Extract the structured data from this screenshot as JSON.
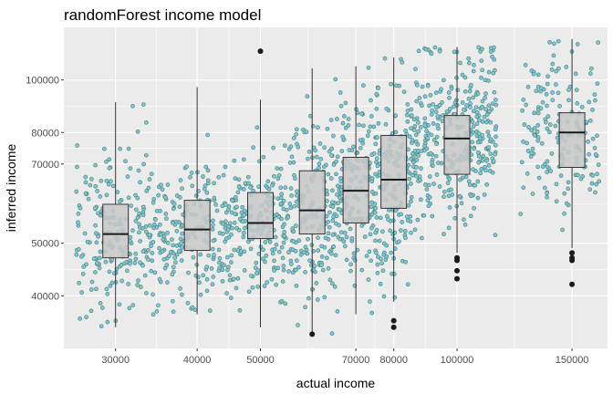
{
  "chart_data": {
    "type": "box-jitter",
    "title": "randomForest income model",
    "xlabel": "actual income",
    "ylabel": "inferred income",
    "x_scale": "log10",
    "y_scale": "log10",
    "xlim": [
      25000,
      170000
    ],
    "ylim": [
      32000,
      125000
    ],
    "x_ticks": [
      30000,
      40000,
      50000,
      70000,
      80000,
      100000,
      150000
    ],
    "x_tick_labels": [
      "30000",
      "40000",
      "50000",
      "70000",
      "80000",
      "100000",
      "150000"
    ],
    "y_ticks": [
      40000,
      50000,
      70000,
      80000,
      100000
    ],
    "y_tick_labels": [
      "40000",
      "50000",
      "70000",
      "80000",
      "100000"
    ],
    "grid": true,
    "legend": "none",
    "colors": {
      "panel": "#ebebeb",
      "grid": "#ffffff",
      "point_fill": "#7ec4e6",
      "point_stroke": "#4f8a6a",
      "box_fill": "#c8c8c8",
      "box_stroke": "#333333",
      "outlier": "#1a1a1a"
    },
    "groups": [
      {
        "x": 30000,
        "spread": [
          26000,
          35000
        ],
        "count": 230,
        "min": 35000,
        "q1": 47000,
        "median": 52000,
        "q3": 59000,
        "max": 91000,
        "outliers": []
      },
      {
        "x": 40000,
        "spread": [
          35000,
          45000
        ],
        "count": 200,
        "min": 37000,
        "q1": 48500,
        "median": 53000,
        "q3": 60000,
        "max": 97000,
        "outliers": []
      },
      {
        "x": 50000,
        "spread": [
          45000,
          55000
        ],
        "count": 200,
        "min": 35000,
        "q1": 51000,
        "median": 54500,
        "q3": 62000,
        "max": 92000,
        "outliers": [
          113000
        ]
      },
      {
        "x": 60000,
        "spread": [
          55000,
          65000
        ],
        "count": 190,
        "min": 34000,
        "q1": 52000,
        "median": 57500,
        "q3": 68000,
        "max": 105000,
        "outliers": [
          34000
        ]
      },
      {
        "x": 70000,
        "spread": [
          65000,
          75000
        ],
        "count": 180,
        "min": 37000,
        "q1": 54500,
        "median": 62500,
        "q3": 72000,
        "max": 106000,
        "outliers": []
      },
      {
        "x": 80000,
        "spread": [
          75000,
          85000
        ],
        "count": 170,
        "min": 39000,
        "q1": 58000,
        "median": 65500,
        "q3": 79000,
        "max": 110000,
        "outliers": [
          35000,
          36000
        ]
      },
      {
        "x": 100000,
        "spread": [
          85000,
          115000
        ],
        "count": 360,
        "min": 48000,
        "q1": 67000,
        "median": 78000,
        "q3": 86000,
        "max": 115000,
        "outliers": [
          43000,
          44500,
          46500,
          47000
        ]
      },
      {
        "x": 150000,
        "spread": [
          125000,
          165000
        ],
        "count": 170,
        "min": 49000,
        "q1": 69000,
        "median": 80000,
        "q3": 87000,
        "max": 119000,
        "outliers": [
          42000,
          46500,
          47000,
          48000
        ]
      }
    ]
  }
}
